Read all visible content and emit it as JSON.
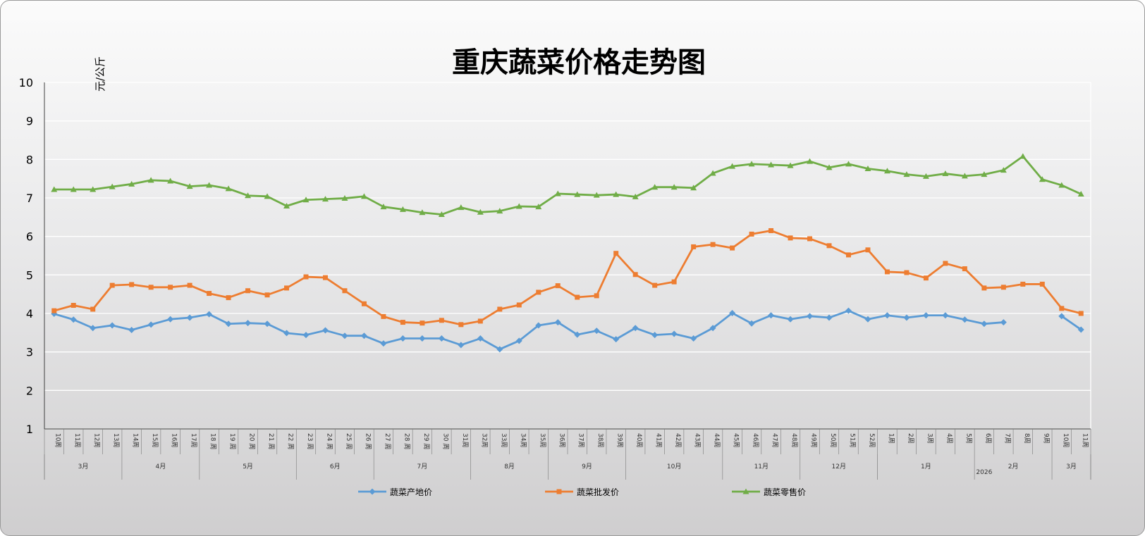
{
  "chart_data": {
    "type": "line",
    "title": "重庆蔬菜价格走势图",
    "ylabel": "元/公斤",
    "ylim": [
      1,
      10
    ],
    "yticks": [
      "1",
      "2",
      "3",
      "4",
      "5",
      "6",
      "7",
      "8",
      "9",
      "10"
    ],
    "grid": true,
    "legend_position": "bottom",
    "x": [
      "10周",
      "11周",
      "12周",
      "13周",
      "14周",
      "15周",
      "16周",
      "17周",
      "18 周",
      "19 周",
      "20 周",
      "21 周",
      "22 周",
      "23 周",
      "24 周",
      "25 周",
      "26 周",
      "27 周",
      "28 周",
      "29 周",
      "30 周",
      "31周",
      "32周",
      "33周",
      "34周",
      "35周",
      "36周",
      "37周",
      "38周",
      "39周",
      "40周",
      "41周",
      "42周",
      "43周",
      "44周",
      "45周",
      "46周",
      "47周",
      "48周",
      "49周",
      "50周",
      "51周",
      "52周",
      "1周",
      "2周",
      "3周",
      "4周",
      "5周",
      "6周",
      "7周",
      "8周",
      "9周",
      "10周",
      "11周"
    ],
    "months": [
      {
        "label": "3月",
        "start": 0,
        "end": 4
      },
      {
        "label": "4月",
        "start": 4,
        "end": 8
      },
      {
        "label": "5月",
        "start": 8,
        "end": 13
      },
      {
        "label": "6月",
        "start": 13,
        "end": 17
      },
      {
        "label": "7月",
        "start": 17,
        "end": 22
      },
      {
        "label": "8月",
        "start": 22,
        "end": 26
      },
      {
        "label": "9月",
        "start": 26,
        "end": 30
      },
      {
        "label": "10月",
        "start": 30,
        "end": 35
      },
      {
        "label": "11月",
        "start": 35,
        "end": 39
      },
      {
        "label": "12月",
        "start": 39,
        "end": 43
      },
      {
        "label": "1月",
        "start": 43,
        "end": 48
      },
      {
        "label": "2月",
        "start": 48,
        "end": 52
      },
      {
        "label": "3月",
        "start": 52,
        "end": 54
      }
    ],
    "years": [
      {
        "label": "",
        "start": 0,
        "end": 43
      },
      {
        "label": "2026",
        "start": 43,
        "end": 54
      }
    ],
    "series": [
      {
        "name": "蔬菜产地价",
        "color": "#5b9bd5",
        "marker": "diamond",
        "values": [
          3.99,
          3.84,
          3.62,
          3.69,
          3.57,
          3.71,
          3.85,
          3.89,
          3.98,
          3.73,
          3.75,
          3.73,
          3.49,
          3.44,
          3.56,
          3.42,
          3.42,
          3.22,
          3.35,
          3.35,
          3.35,
          3.18,
          3.35,
          3.07,
          3.29,
          3.69,
          3.77,
          3.45,
          3.55,
          3.33,
          3.62,
          3.44,
          3.47,
          3.35,
          3.62,
          4.01,
          3.74,
          3.95,
          3.85,
          3.93,
          3.89,
          4.07,
          3.85,
          3.95,
          3.89,
          3.95,
          3.95,
          3.84,
          3.73,
          3.77,
          null,
          null,
          3.93,
          3.58
        ]
      },
      {
        "name": "蔬菜批发价",
        "color": "#ed7d31",
        "marker": "square",
        "values": [
          4.07,
          4.21,
          4.11,
          4.73,
          4.75,
          4.68,
          4.68,
          4.73,
          4.52,
          4.41,
          4.59,
          4.48,
          4.66,
          4.95,
          4.93,
          4.59,
          4.25,
          3.92,
          3.77,
          3.75,
          3.82,
          3.71,
          3.8,
          4.11,
          4.22,
          4.55,
          4.72,
          4.42,
          4.46,
          5.56,
          5.01,
          4.73,
          4.82,
          5.73,
          5.79,
          5.7,
          6.06,
          6.15,
          5.96,
          5.94,
          5.76,
          5.52,
          5.65,
          5.08,
          5.06,
          4.92,
          5.3,
          5.16,
          4.66,
          4.68,
          4.76,
          4.76,
          4.13,
          4.0
        ]
      },
      {
        "name": "蔬菜零售价",
        "color": "#70ad47",
        "marker": "triangle",
        "values": [
          7.22,
          7.22,
          7.22,
          7.29,
          7.36,
          7.46,
          7.44,
          7.3,
          7.33,
          7.24,
          7.06,
          7.04,
          6.79,
          6.95,
          6.97,
          6.99,
          7.04,
          6.77,
          6.7,
          6.62,
          6.57,
          6.75,
          6.63,
          6.66,
          6.78,
          6.77,
          7.11,
          7.09,
          7.07,
          7.09,
          7.03,
          7.28,
          7.28,
          7.26,
          7.64,
          7.82,
          7.88,
          7.86,
          7.84,
          7.95,
          7.79,
          7.88,
          7.76,
          7.7,
          7.61,
          7.56,
          7.63,
          7.57,
          7.61,
          7.72,
          8.08,
          7.48,
          7.33,
          7.1
        ]
      }
    ]
  }
}
